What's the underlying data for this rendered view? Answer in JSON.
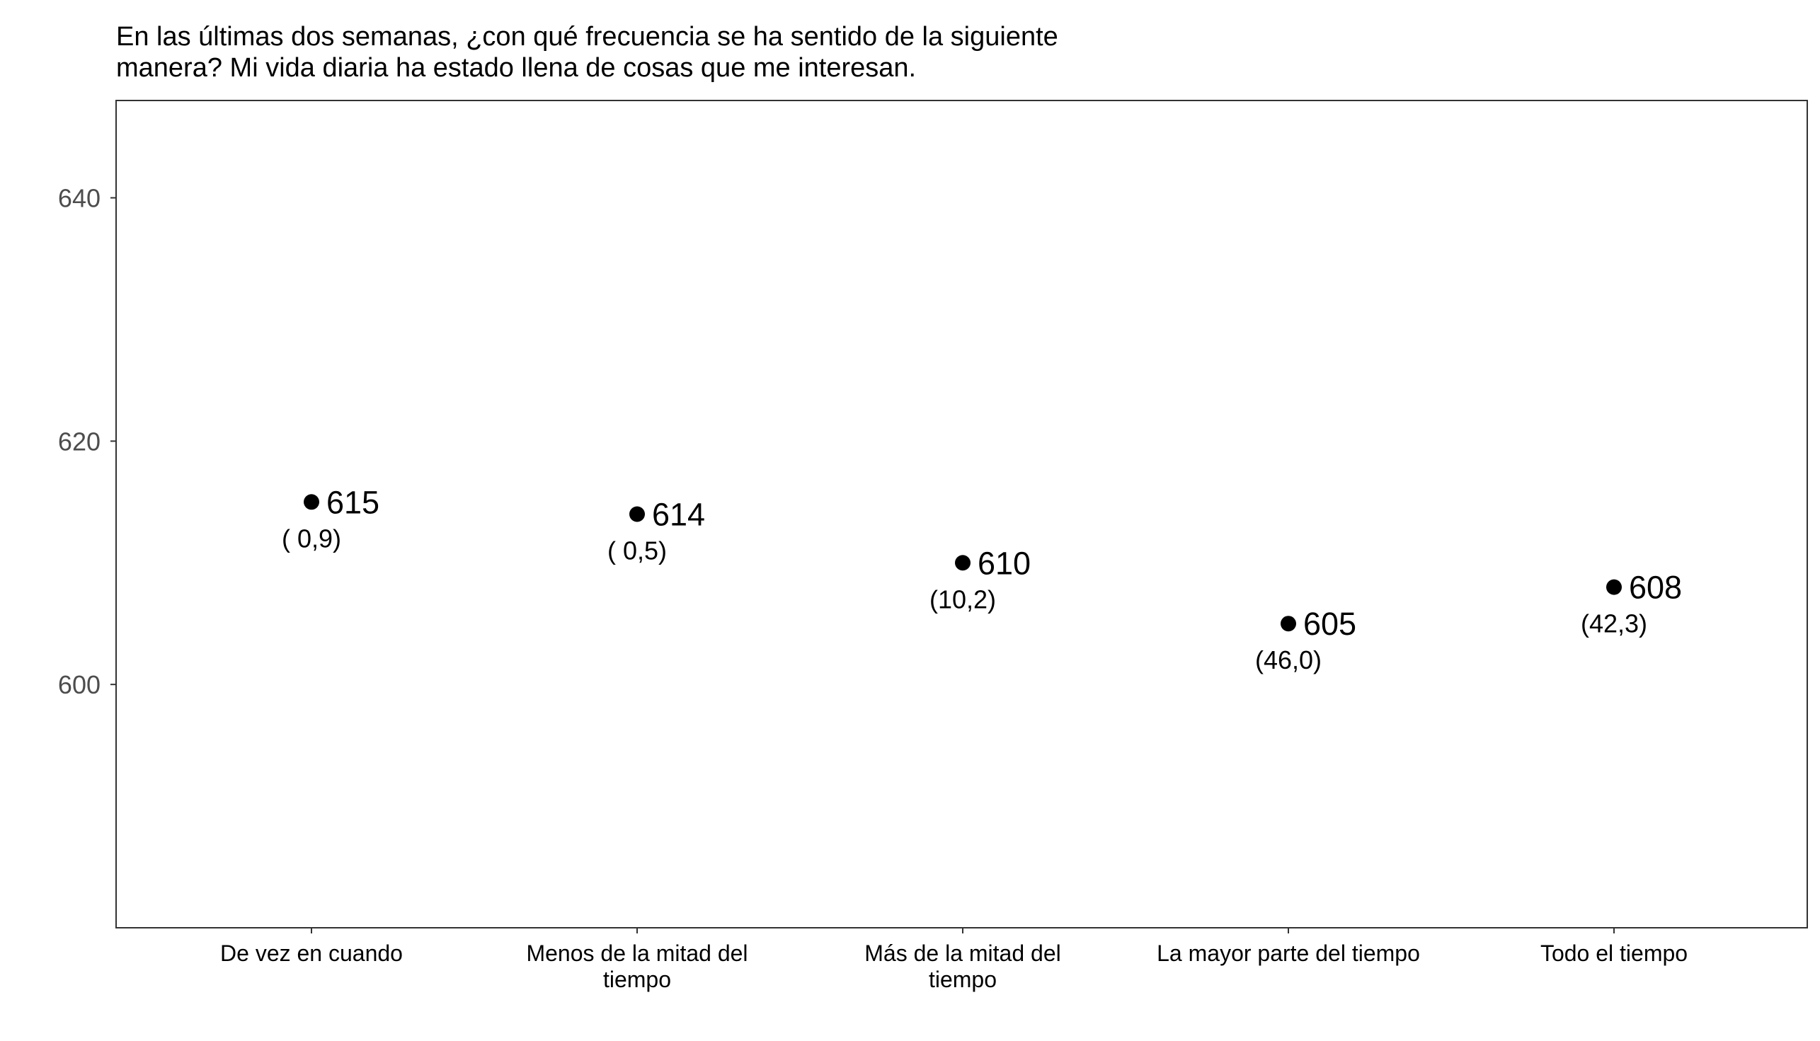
{
  "chart_data": {
    "type": "scatter",
    "title_lines": [
      "En las últimas dos semanas, ¿con qué frecuencia se ha sentido de la siguiente",
      "manera? Mi vida diaria ha estado llena de cosas que me interesan."
    ],
    "xlabel": "",
    "ylabel": "",
    "categories": [
      [
        "De vez en cuando"
      ],
      [
        "Menos de la mitad del",
        "tiempo"
      ],
      [
        "Más de la mitad del",
        "tiempo"
      ],
      [
        "La mayor parte del tiempo"
      ],
      [
        "Todo el tiempo"
      ]
    ],
    "values": [
      615,
      614,
      610,
      605,
      608
    ],
    "value_labels": [
      "615",
      "614",
      "610",
      "605",
      "608"
    ],
    "percent_labels": [
      "( 0,9)",
      "( 0,5)",
      "(10,2)",
      "(46,0)",
      "(42,3)"
    ],
    "yticks": [
      600,
      620,
      640
    ],
    "ytick_labels": [
      "600",
      "620",
      "640"
    ],
    "ylim": [
      580,
      648
    ],
    "grid": false,
    "legend": "none",
    "point_color": "#000000",
    "axis_label_color": "#4d4d4d"
  }
}
